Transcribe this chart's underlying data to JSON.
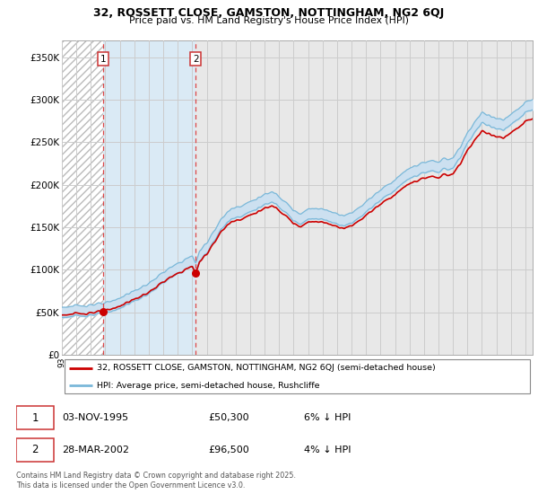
{
  "title": "32, ROSSETT CLOSE, GAMSTON, NOTTINGHAM, NG2 6QJ",
  "subtitle": "Price paid vs. HM Land Registry's House Price Index (HPI)",
  "legend_line1": "32, ROSSETT CLOSE, GAMSTON, NOTTINGHAM, NG2 6QJ (semi-detached house)",
  "legend_line2": "HPI: Average price, semi-detached house, Rushcliffe",
  "sale1_date": "03-NOV-1995",
  "sale1_price": "£50,300",
  "sale1_hpi": "6% ↓ HPI",
  "sale2_date": "28-MAR-2002",
  "sale2_price": "£96,500",
  "sale2_hpi": "4% ↓ HPI",
  "copyright": "Contains HM Land Registry data © Crown copyright and database right 2025.\nThis data is licensed under the Open Government Licence v3.0.",
  "ylim": [
    0,
    370000
  ],
  "yticks": [
    0,
    50000,
    100000,
    150000,
    200000,
    250000,
    300000,
    350000
  ],
  "ytick_labels": [
    "£0",
    "£50K",
    "£100K",
    "£150K",
    "£200K",
    "£250K",
    "£300K",
    "£350K"
  ],
  "sold_color": "#cc0000",
  "sale1_x": 1995.84,
  "sale1_y": 50300,
  "sale2_x": 2002.24,
  "sale2_y": 96500,
  "hpi_line_color": "#7ab8d9",
  "hpi_fill_color": "#cce0f0",
  "grid_color": "#cccccc",
  "bg_color": "#e8e8e8",
  "hatch_color": "#c8c8c8",
  "between_color": "#daeaf5",
  "xmin": 1993.0,
  "xmax": 2025.5
}
